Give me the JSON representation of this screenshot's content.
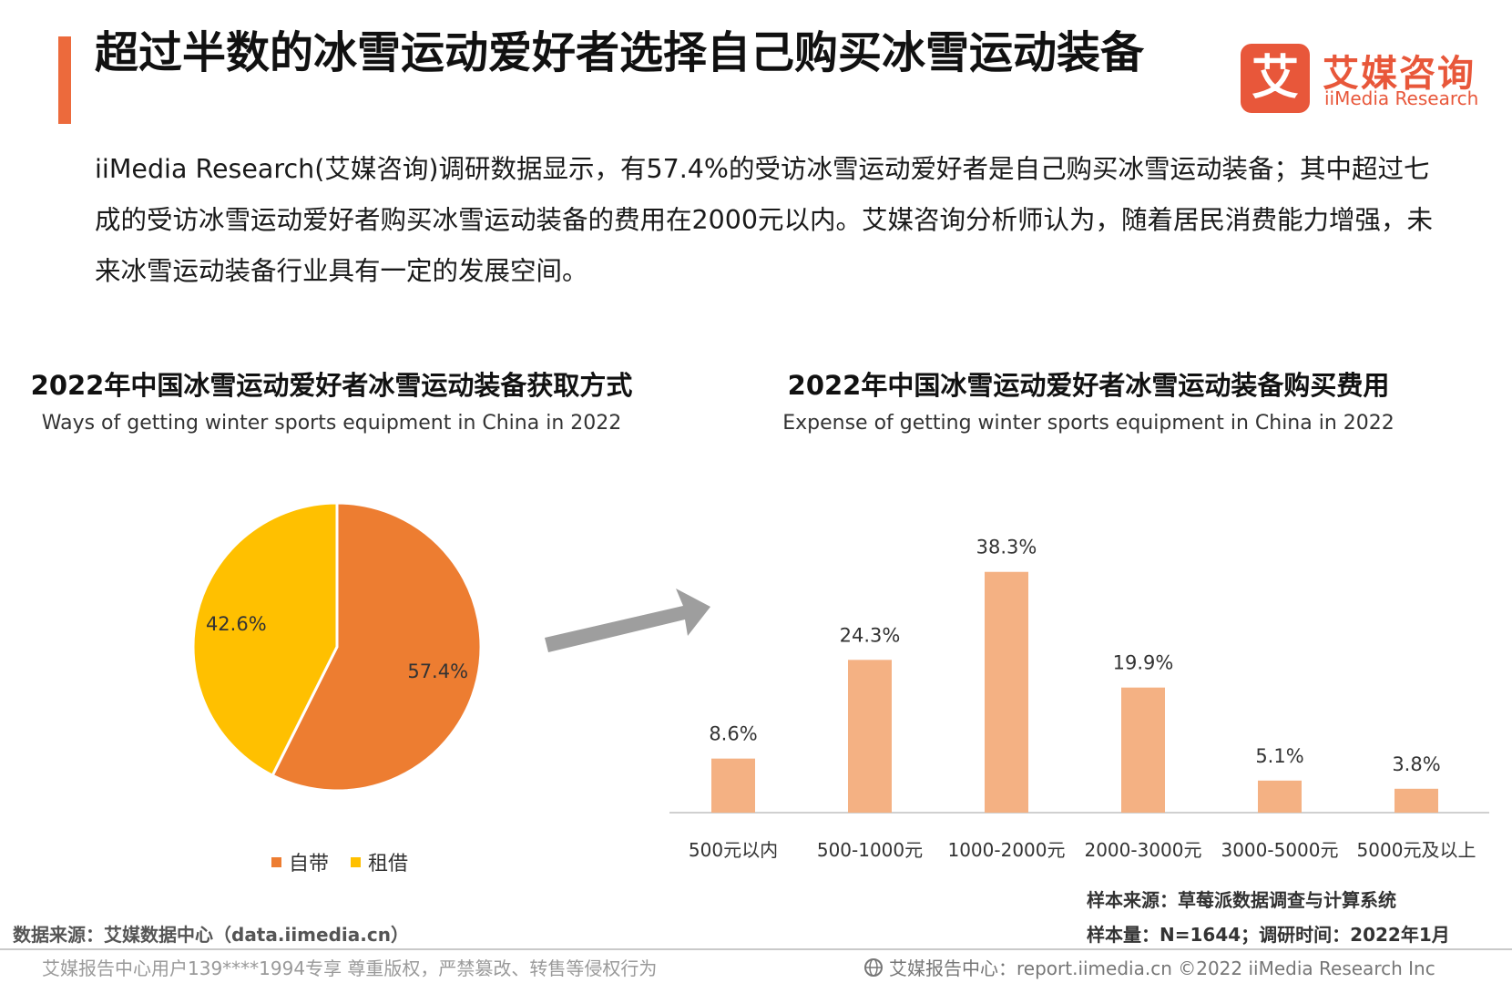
{
  "header": {
    "title": "超过半数的冰雪运动爱好者选择自己购买冰雪运动装备",
    "logo_mark": "艾",
    "logo_cn": "艾媒咨询",
    "logo_en": "iiMedia Research"
  },
  "intro": "iiMedia Research(艾媒咨询)调研数据显示，有57.4%的受访冰雪运动爱好者是自己购买冰雪运动装备；其中超过七成的受访冰雪运动爱好者购买冰雪运动装备的费用在2000元以内。艾媒咨询分析师认为，随着居民消费能力增强，未来冰雪运动装备行业具有一定的发展空间。",
  "chart_data": [
    {
      "type": "pie",
      "title": "2022年中国冰雪运动爱好者冰雪运动装备获取方式",
      "subtitle": "Ways of getting winter sports equipment in China in 2022",
      "slices": [
        {
          "label": "自带",
          "value": 57.4,
          "display": "57.4%",
          "color": "#ed7d31"
        },
        {
          "label": "租借",
          "value": 42.6,
          "display": "42.6%",
          "color": "#ffc000"
        }
      ],
      "legend_position": "bottom"
    },
    {
      "type": "bar",
      "title": "2022年中国冰雪运动爱好者冰雪运动装备购买费用",
      "subtitle": "Expense of getting winter sports equipment in China in 2022",
      "categories": [
        "500元以内",
        "500-1000元",
        "1000-2000元",
        "2000-3000元",
        "3000-5000元",
        "5000元及以上"
      ],
      "values": [
        8.6,
        24.3,
        38.3,
        19.9,
        5.1,
        3.8
      ],
      "labels": [
        "8.6%",
        "24.3%",
        "38.3%",
        "19.9%",
        "5.1%",
        "3.8%"
      ],
      "ylim": [
        0,
        40
      ],
      "bar_color": "#f4b183",
      "grid": false
    }
  ],
  "notes": {
    "source": "数据来源：艾媒数据中心（data.iimedia.cn）",
    "sample_source": "样本来源：草莓派数据调查与计算系统",
    "sample_size": "样本量：N=1644；调研时间：2022年1月"
  },
  "footer": {
    "left": "艾媒报告中心用户139****1994专享 尊重版权，严禁篡改、转售等侵权行为",
    "right_icon": "globe-icon",
    "right": "艾媒报告中心：report.iimedia.cn  ©2022  iiMedia Research  Inc"
  }
}
